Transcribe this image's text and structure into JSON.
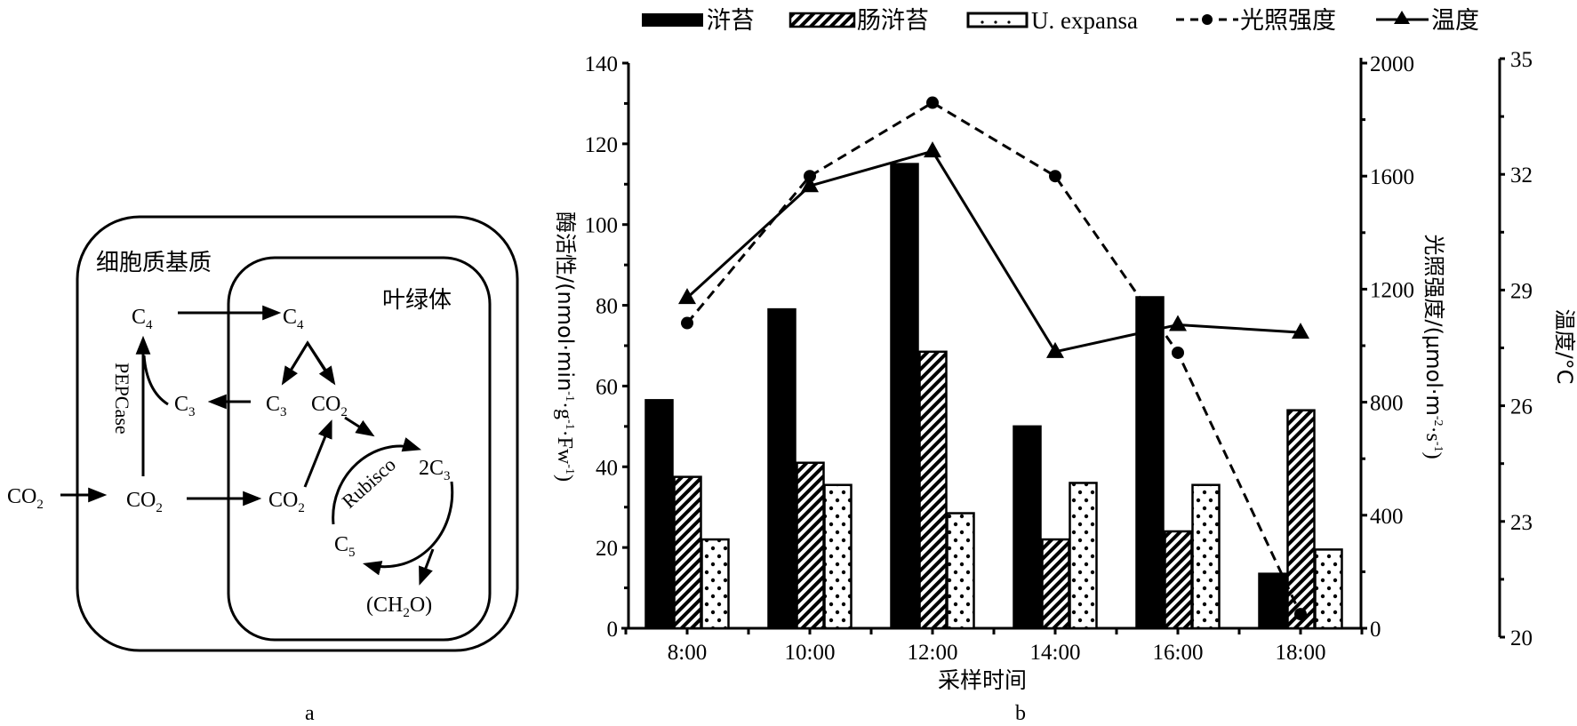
{
  "figure_a": {
    "label": "a",
    "regions": {
      "cytoplasm": "细胞质基质",
      "chloroplast": "叶绿体"
    },
    "nodes": {
      "co2_outside": {
        "base": "CO",
        "sub": "2"
      },
      "co2_cytoplasm": {
        "base": "CO",
        "sub": "2"
      },
      "co2_chloroplast": {
        "base": "CO",
        "sub": "2"
      },
      "co2_released": {
        "base": "CO",
        "sub": "2"
      },
      "c4_cytoplasm": {
        "base": "C",
        "sub": "4"
      },
      "c4_chloroplast": {
        "base": "C",
        "sub": "4"
      },
      "c3_cytoplasm": {
        "base": "C",
        "sub": "3"
      },
      "c3_chloroplast": {
        "base": "C",
        "sub": "3"
      },
      "two_c3": {
        "base": "2C",
        "sub": "3"
      },
      "c5": {
        "base": "C",
        "sub": "5"
      },
      "ch2o": {
        "pre": "(CH",
        "sub": "2",
        "post": "O)"
      }
    },
    "enzymes": {
      "pepcase": "PEPCase",
      "rubisco": "Rubisco"
    }
  },
  "figure_b": {
    "label": "b"
  },
  "chart_data": {
    "type": "bar+line",
    "categories": [
      "8:00",
      "10:00",
      "12:00",
      "14:00",
      "16:00",
      "18:00"
    ],
    "xlabel": "采样时间",
    "y_left": {
      "label_main": "酶活性/(nmol·min",
      "label_parts": [
        "酶活性/(nmol·min",
        "-1",
        "·g",
        "-1",
        "·Fw",
        "-1",
        ")"
      ],
      "range": [
        0,
        140
      ],
      "ticks": [
        "0",
        "20",
        "40",
        "60",
        "80",
        "100",
        "120",
        "140"
      ],
      "tick_values": [
        0,
        20,
        40,
        60,
        80,
        100,
        120,
        140
      ]
    },
    "y_right_light": {
      "label_parts": [
        "光照强度/(μmol·m",
        "-2",
        "·s",
        "-1",
        ")"
      ],
      "range": [
        0,
        2000
      ],
      "ticks": [
        "0",
        "400",
        "800",
        "1200",
        "1600",
        "2000"
      ],
      "tick_values": [
        0,
        400,
        800,
        1200,
        1600,
        2000
      ]
    },
    "y_right_temp": {
      "label": "温度/°C",
      "range": [
        20,
        35
      ],
      "ticks": [
        "20",
        "23",
        "26",
        "29",
        "32",
        "35"
      ],
      "tick_values": [
        20,
        23,
        26,
        29,
        32,
        35
      ]
    },
    "bar_series": [
      {
        "name": "浒苔",
        "pattern": "solid",
        "values": [
          56.5,
          79,
          115,
          50,
          82,
          13.5
        ]
      },
      {
        "name": "肠浒苔",
        "pattern": "hatched",
        "values": [
          37.5,
          41,
          68.5,
          22,
          24,
          54
        ]
      },
      {
        "name": "U. expansa",
        "pattern": "dotted",
        "values": [
          22,
          35.5,
          28.5,
          36,
          35.5,
          19.5
        ]
      }
    ],
    "line_series": [
      {
        "name": "光照强度",
        "axis": "y_right_light",
        "style": "dashed",
        "marker": "circle",
        "values": [
          1080,
          1600,
          1860,
          1600,
          975,
          50
        ]
      },
      {
        "name": "温度",
        "axis": "y_right_temp",
        "style": "solid",
        "marker": "triangle",
        "values": [
          28.8,
          31.7,
          32.6,
          27.4,
          28.1,
          27.9
        ]
      }
    ],
    "legend": [
      "浒苔",
      "肠浒苔",
      "U. expansa",
      "光照强度",
      "温度"
    ],
    "legend_position": "top",
    "grid": false
  }
}
